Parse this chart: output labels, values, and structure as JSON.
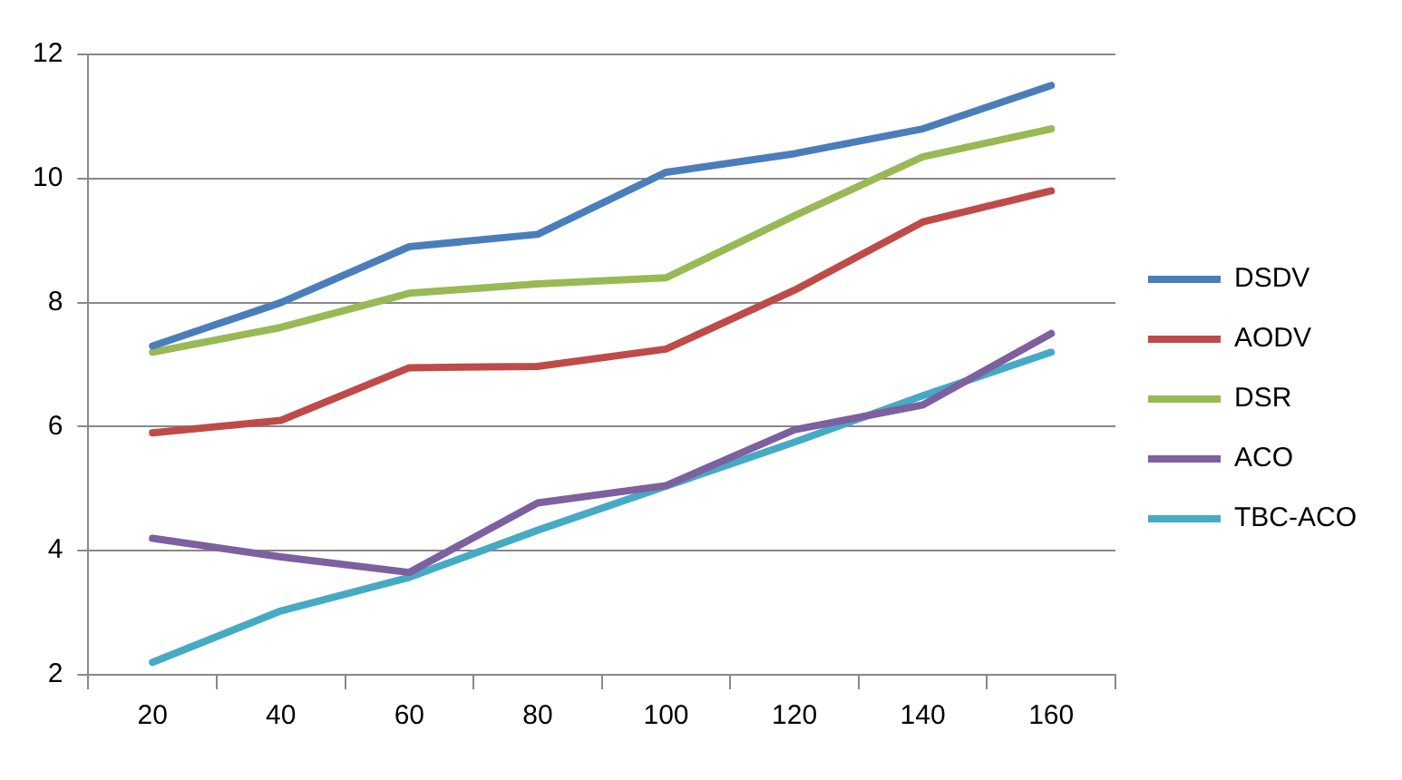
{
  "chart_data": {
    "type": "line",
    "categories": [
      "20",
      "40",
      "60",
      "80",
      "100",
      "120",
      "140",
      "160"
    ],
    "series": [
      {
        "name": "DSDV",
        "color": "#4a7ebb",
        "values": [
          7.3,
          8.0,
          8.9,
          9.1,
          10.1,
          10.4,
          10.8,
          11.5
        ]
      },
      {
        "name": "AODV",
        "color": "#be4b48",
        "values": [
          5.9,
          6.1,
          6.95,
          6.97,
          7.25,
          8.2,
          9.3,
          9.8
        ]
      },
      {
        "name": "DSR",
        "color": "#98b954",
        "values": [
          7.2,
          7.6,
          8.15,
          8.3,
          8.4,
          9.4,
          10.35,
          10.8
        ]
      },
      {
        "name": "ACO",
        "color": "#7d60a0",
        "values": [
          4.2,
          3.9,
          3.65,
          4.77,
          5.05,
          5.95,
          6.35,
          7.5
        ]
      },
      {
        "name": "TBC-ACO",
        "color": "#46aac5",
        "values": [
          2.2,
          3.03,
          3.57,
          4.33,
          5.04,
          5.75,
          6.5,
          7.2
        ]
      }
    ],
    "ylim": [
      2,
      12
    ],
    "yticks": [
      2,
      4,
      6,
      8,
      10,
      12
    ],
    "grid": "y",
    "legend": "right",
    "marker": "none",
    "line_style": "solid"
  }
}
